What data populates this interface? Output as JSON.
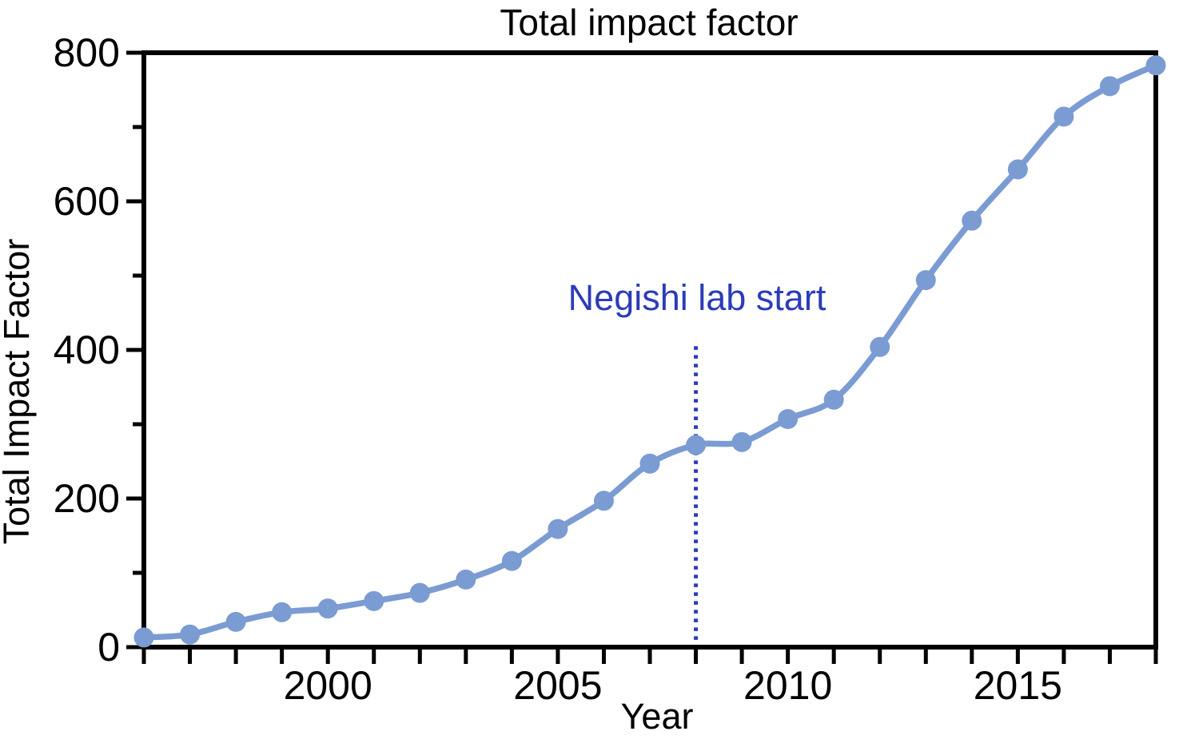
{
  "chart_data": {
    "type": "line",
    "title": "Total impact factor",
    "xlabel": "Year",
    "ylabel": "Total Impact Factor",
    "x": [
      1996,
      1997,
      1998,
      1999,
      2000,
      2001,
      2002,
      2003,
      2004,
      2005,
      2006,
      2007,
      2008,
      2009,
      2010,
      2011,
      2012,
      2013,
      2014,
      2015,
      2016,
      2017,
      2018
    ],
    "series": [
      {
        "name": "Total impact factor",
        "values": [
          13,
          17,
          34,
          47,
          52,
          62,
          73,
          91,
          116,
          159,
          197,
          247,
          272,
          276,
          307,
          333,
          404,
          494,
          574,
          643,
          714,
          755,
          783
        ]
      }
    ],
    "xlim": [
      1996,
      2018
    ],
    "ylim": [
      0,
      800
    ],
    "y_major_ticks": [
      0,
      200,
      400,
      600,
      800
    ],
    "y_minor_ticks": [
      100,
      300,
      500,
      700
    ],
    "x_labeled_ticks": [
      2000,
      2005,
      2010,
      2015
    ],
    "x_tick_labels": [
      "2000",
      "2005",
      "2010",
      "2015"
    ],
    "y_tick_labels": [
      "0",
      "200",
      "400",
      "600",
      "800"
    ],
    "grid": false,
    "legend": false,
    "line_color": "#7b9bd3",
    "axis_color": "#000000",
    "annotation": {
      "text": "Negishi lab start",
      "x": 2008,
      "line_top_value": 405,
      "color": "#2b3cb8"
    }
  }
}
